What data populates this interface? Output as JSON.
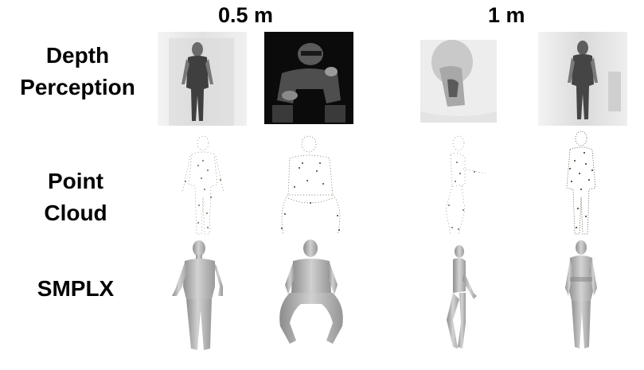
{
  "column_headers": [
    "0.5 m",
    "1 m"
  ],
  "row_labels": {
    "depth": [
      "Depth",
      "Perception"
    ],
    "point_cloud": [
      "Point",
      "Cloud"
    ],
    "smplx": [
      "SMPLX"
    ]
  },
  "colors": {
    "depth_bg": "#ededed",
    "depth_dark_bg": "#0b0b0b",
    "figure_dark": "#3a3a3a",
    "point": "#4a4a3a",
    "mesh": "#bdbdbd",
    "mesh_shade": "#8f8f8f"
  }
}
